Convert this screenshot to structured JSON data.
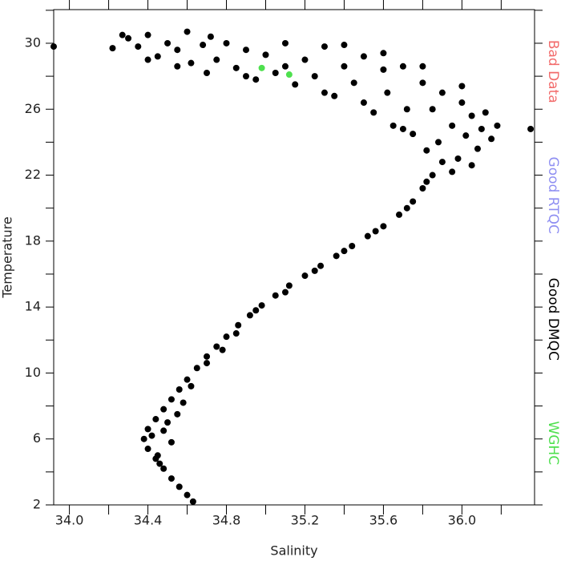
{
  "chart_data": {
    "type": "scatter",
    "x_label": "Salinity",
    "y_label": "Temperature",
    "xlim": [
      33.92,
      36.37
    ],
    "ylim": [
      2,
      32.04
    ],
    "xticks": [
      {
        "value": 34.0,
        "label": "34.0"
      },
      {
        "value": 34.4,
        "label": "34.4"
      },
      {
        "value": 34.8,
        "label": "34.8"
      },
      {
        "value": 35.2,
        "label": "35.2"
      },
      {
        "value": 35.6,
        "label": "35.6"
      },
      {
        "value": 36.0,
        "label": "36.0"
      }
    ],
    "xticks_minor": [
      34.2,
      34.6,
      35.0,
      35.4,
      35.8,
      36.2
    ],
    "yticks": [
      2,
      6,
      10,
      14,
      18,
      22,
      26,
      30
    ],
    "yticks_minor": [
      4,
      8,
      12,
      16,
      20,
      24,
      28,
      32
    ],
    "legend": "right",
    "series": [
      {
        "name": "Bad Data",
        "color": "#f26b6b",
        "x": [],
        "y": []
      },
      {
        "name": "Good RTQC",
        "color": "#8f8ff2",
        "x": [],
        "y": []
      },
      {
        "name": "Good DMQC",
        "color": "#000000",
        "x": [
          34.63,
          34.6,
          34.56,
          34.52,
          34.48,
          34.44,
          34.4,
          34.38,
          34.4,
          34.44,
          34.48,
          34.52,
          34.56,
          34.6,
          34.65,
          34.7,
          34.75,
          34.8,
          34.86,
          34.92,
          34.98,
          35.05,
          35.12,
          35.2,
          35.28,
          35.36,
          35.44,
          35.52,
          35.6,
          35.68,
          35.75,
          35.8,
          35.85,
          35.9,
          34.45,
          34.48,
          34.52,
          34.5,
          34.58,
          34.42,
          34.46,
          34.55,
          34.62,
          34.7,
          34.78,
          34.85,
          34.95,
          35.1,
          35.25,
          35.4,
          35.56,
          35.72,
          35.82,
          34.3,
          34.35,
          34.4,
          34.45,
          34.5,
          34.55,
          34.6,
          34.62,
          34.68,
          34.72,
          34.75,
          34.8,
          34.85,
          34.9,
          34.95,
          35.0,
          35.05,
          35.1,
          35.15,
          35.2,
          35.25,
          35.3,
          35.35,
          35.4,
          35.45,
          35.5,
          35.55,
          35.6,
          35.62,
          35.65,
          35.7,
          35.72,
          35.75,
          35.8,
          35.82,
          35.85,
          35.88,
          35.9,
          35.95,
          35.98,
          36.0,
          36.02,
          36.05,
          36.08,
          36.1,
          36.12,
          36.15,
          36.18,
          36.05,
          35.95,
          35.7,
          35.5,
          35.3,
          35.1,
          34.9,
          34.7,
          34.55,
          34.4,
          35.4,
          35.6,
          35.8,
          36.0,
          33.92,
          34.22,
          34.27,
          36.35
        ],
        "y": [
          2.2,
          2.6,
          3.1,
          3.6,
          4.2,
          4.8,
          5.4,
          6.0,
          6.6,
          7.2,
          7.8,
          8.4,
          9.0,
          9.6,
          10.3,
          11.0,
          11.6,
          12.2,
          12.9,
          13.5,
          14.1,
          14.7,
          15.3,
          15.9,
          16.5,
          17.1,
          17.7,
          18.3,
          18.9,
          19.6,
          20.4,
          21.2,
          22.0,
          22.8,
          5.0,
          6.5,
          5.8,
          7.0,
          8.2,
          6.2,
          4.5,
          7.5,
          9.2,
          10.6,
          11.4,
          12.4,
          13.8,
          14.9,
          16.2,
          17.4,
          18.6,
          20.0,
          21.6,
          30.3,
          29.8,
          30.5,
          29.2,
          30.0,
          29.6,
          30.7,
          28.8,
          29.9,
          30.4,
          29.0,
          30.0,
          28.5,
          29.6,
          27.8,
          29.3,
          28.2,
          30.0,
          27.5,
          29.0,
          28.0,
          29.8,
          26.8,
          28.6,
          27.6,
          29.2,
          25.8,
          28.4,
          27.0,
          25.0,
          28.6,
          26.0,
          24.5,
          27.6,
          23.5,
          26.0,
          24.0,
          27.0,
          25.0,
          23.0,
          26.4,
          24.4,
          25.6,
          23.6,
          24.8,
          25.8,
          24.2,
          25.0,
          22.6,
          22.2,
          24.8,
          26.4,
          27.0,
          28.6,
          28.0,
          28.2,
          28.6,
          29.0,
          29.9,
          29.4,
          28.6,
          27.4,
          29.8,
          29.7,
          30.5,
          24.8
        ]
      },
      {
        "name": "WGHC",
        "color": "#4ee04e",
        "x": [
          34.98,
          35.12
        ],
        "y": [
          28.5,
          28.1
        ]
      }
    ]
  }
}
